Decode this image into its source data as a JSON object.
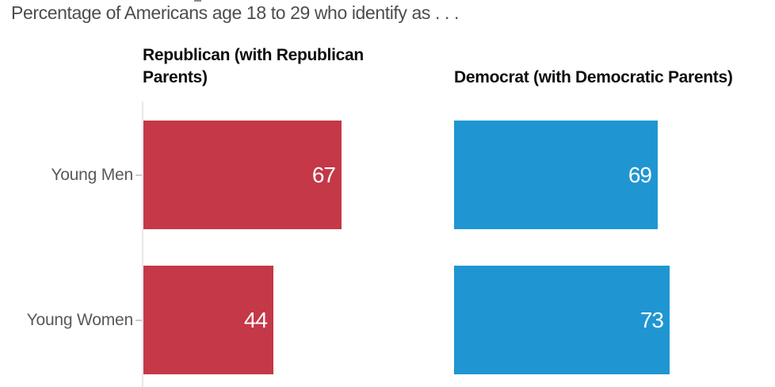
{
  "chart_data": {
    "type": "bar",
    "orientation": "horizontal",
    "title": "Percentage of Americans age 18 to 29 who identify as . . .",
    "categories": [
      "Young Men",
      "Young Women"
    ],
    "series": [
      {
        "name": "Republican (with Republican Parents)",
        "values": [
          67,
          44
        ],
        "color": "#c43848"
      },
      {
        "name": "Democrat (with Democratic Parents)",
        "values": [
          69,
          73
        ],
        "color": "#1f96d2"
      }
    ],
    "xlim": [
      0,
      100
    ],
    "grid": false,
    "legend_position": "column-headers",
    "value_labels_position": "inside-end",
    "value_label_color": "#ffffff",
    "axis_color": "#e8e8e8",
    "label_color": "#595959",
    "subtitle_color": "#4d4d4d"
  }
}
